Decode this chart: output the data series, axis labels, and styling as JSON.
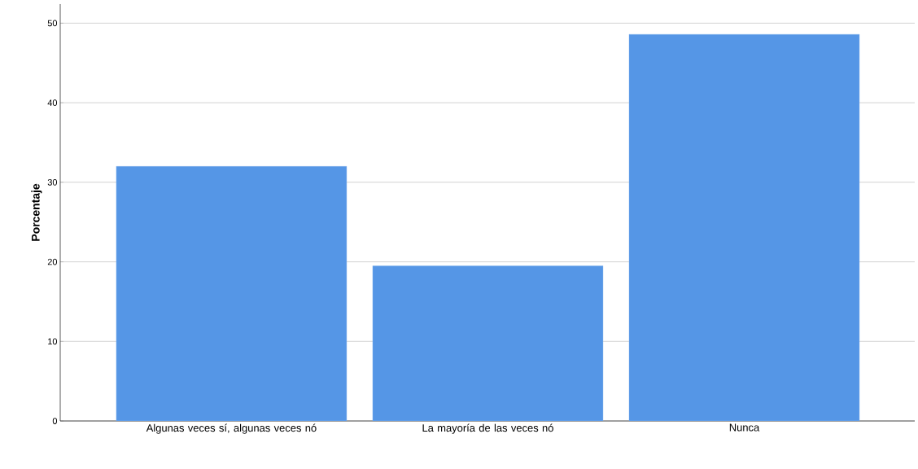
{
  "chart_data": {
    "type": "bar",
    "ylabel": "Porcentaje",
    "categories": [
      "Algunas veces sí, algunas veces nó",
      "La mayoría de las veces nó",
      "Nunca"
    ],
    "values": [
      32.0,
      19.5,
      48.6
    ],
    "color": "#5596e6",
    "ylim": [
      0,
      52.4
    ],
    "yticks": [
      0,
      10,
      20,
      30,
      40,
      50
    ],
    "grid": "y"
  }
}
